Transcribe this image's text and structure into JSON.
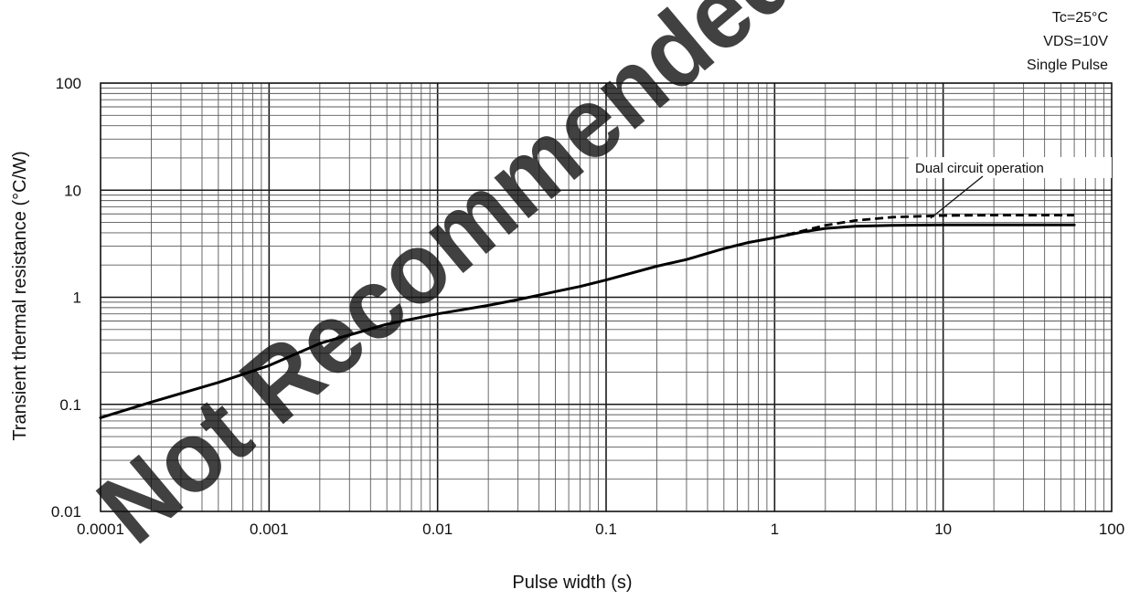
{
  "chart_data": {
    "type": "line",
    "x_scale": "log",
    "y_scale": "log",
    "xlim": [
      0.0001,
      100
    ],
    "ylim": [
      0.01,
      100
    ],
    "xlabel": "Pulse width (s)",
    "ylabel": "Transient thermal resistance (°C/W)",
    "x_tick_labels": [
      "0.0001",
      "0.001",
      "0.01",
      "0.1",
      "1",
      "10",
      "100"
    ],
    "y_tick_labels": [
      "0.01",
      "0.1",
      "1",
      "10",
      "100"
    ],
    "grid": true,
    "conditions": [
      "Tc=25°C",
      "VDS=10V",
      "Single Pulse"
    ],
    "watermark": "Not Recommended",
    "annotation": "Dual circuit operation",
    "series": [
      {
        "style": "solid",
        "points": [
          [
            0.0001,
            0.075
          ],
          [
            0.0002,
            0.105
          ],
          [
            0.0005,
            0.16
          ],
          [
            0.001,
            0.23
          ],
          [
            0.002,
            0.37
          ],
          [
            0.005,
            0.56
          ],
          [
            0.01,
            0.7
          ],
          [
            0.02,
            0.84
          ],
          [
            0.03,
            0.95
          ],
          [
            0.05,
            1.13
          ],
          [
            0.07,
            1.26
          ],
          [
            0.1,
            1.45
          ],
          [
            0.2,
            1.95
          ],
          [
            0.3,
            2.25
          ],
          [
            0.5,
            2.85
          ],
          [
            0.7,
            3.25
          ],
          [
            1,
            3.6
          ],
          [
            1.5,
            4.1
          ],
          [
            2,
            4.4
          ],
          [
            3,
            4.6
          ],
          [
            5,
            4.7
          ],
          [
            10,
            4.75
          ],
          [
            20,
            4.75
          ],
          [
            60,
            4.75
          ]
        ]
      },
      {
        "style": "dashed",
        "points": [
          [
            1,
            3.6
          ],
          [
            1.5,
            4.2
          ],
          [
            2,
            4.7
          ],
          [
            3,
            5.2
          ],
          [
            5,
            5.6
          ],
          [
            10,
            5.8
          ],
          [
            20,
            5.85
          ],
          [
            60,
            5.85
          ]
        ]
      }
    ]
  }
}
